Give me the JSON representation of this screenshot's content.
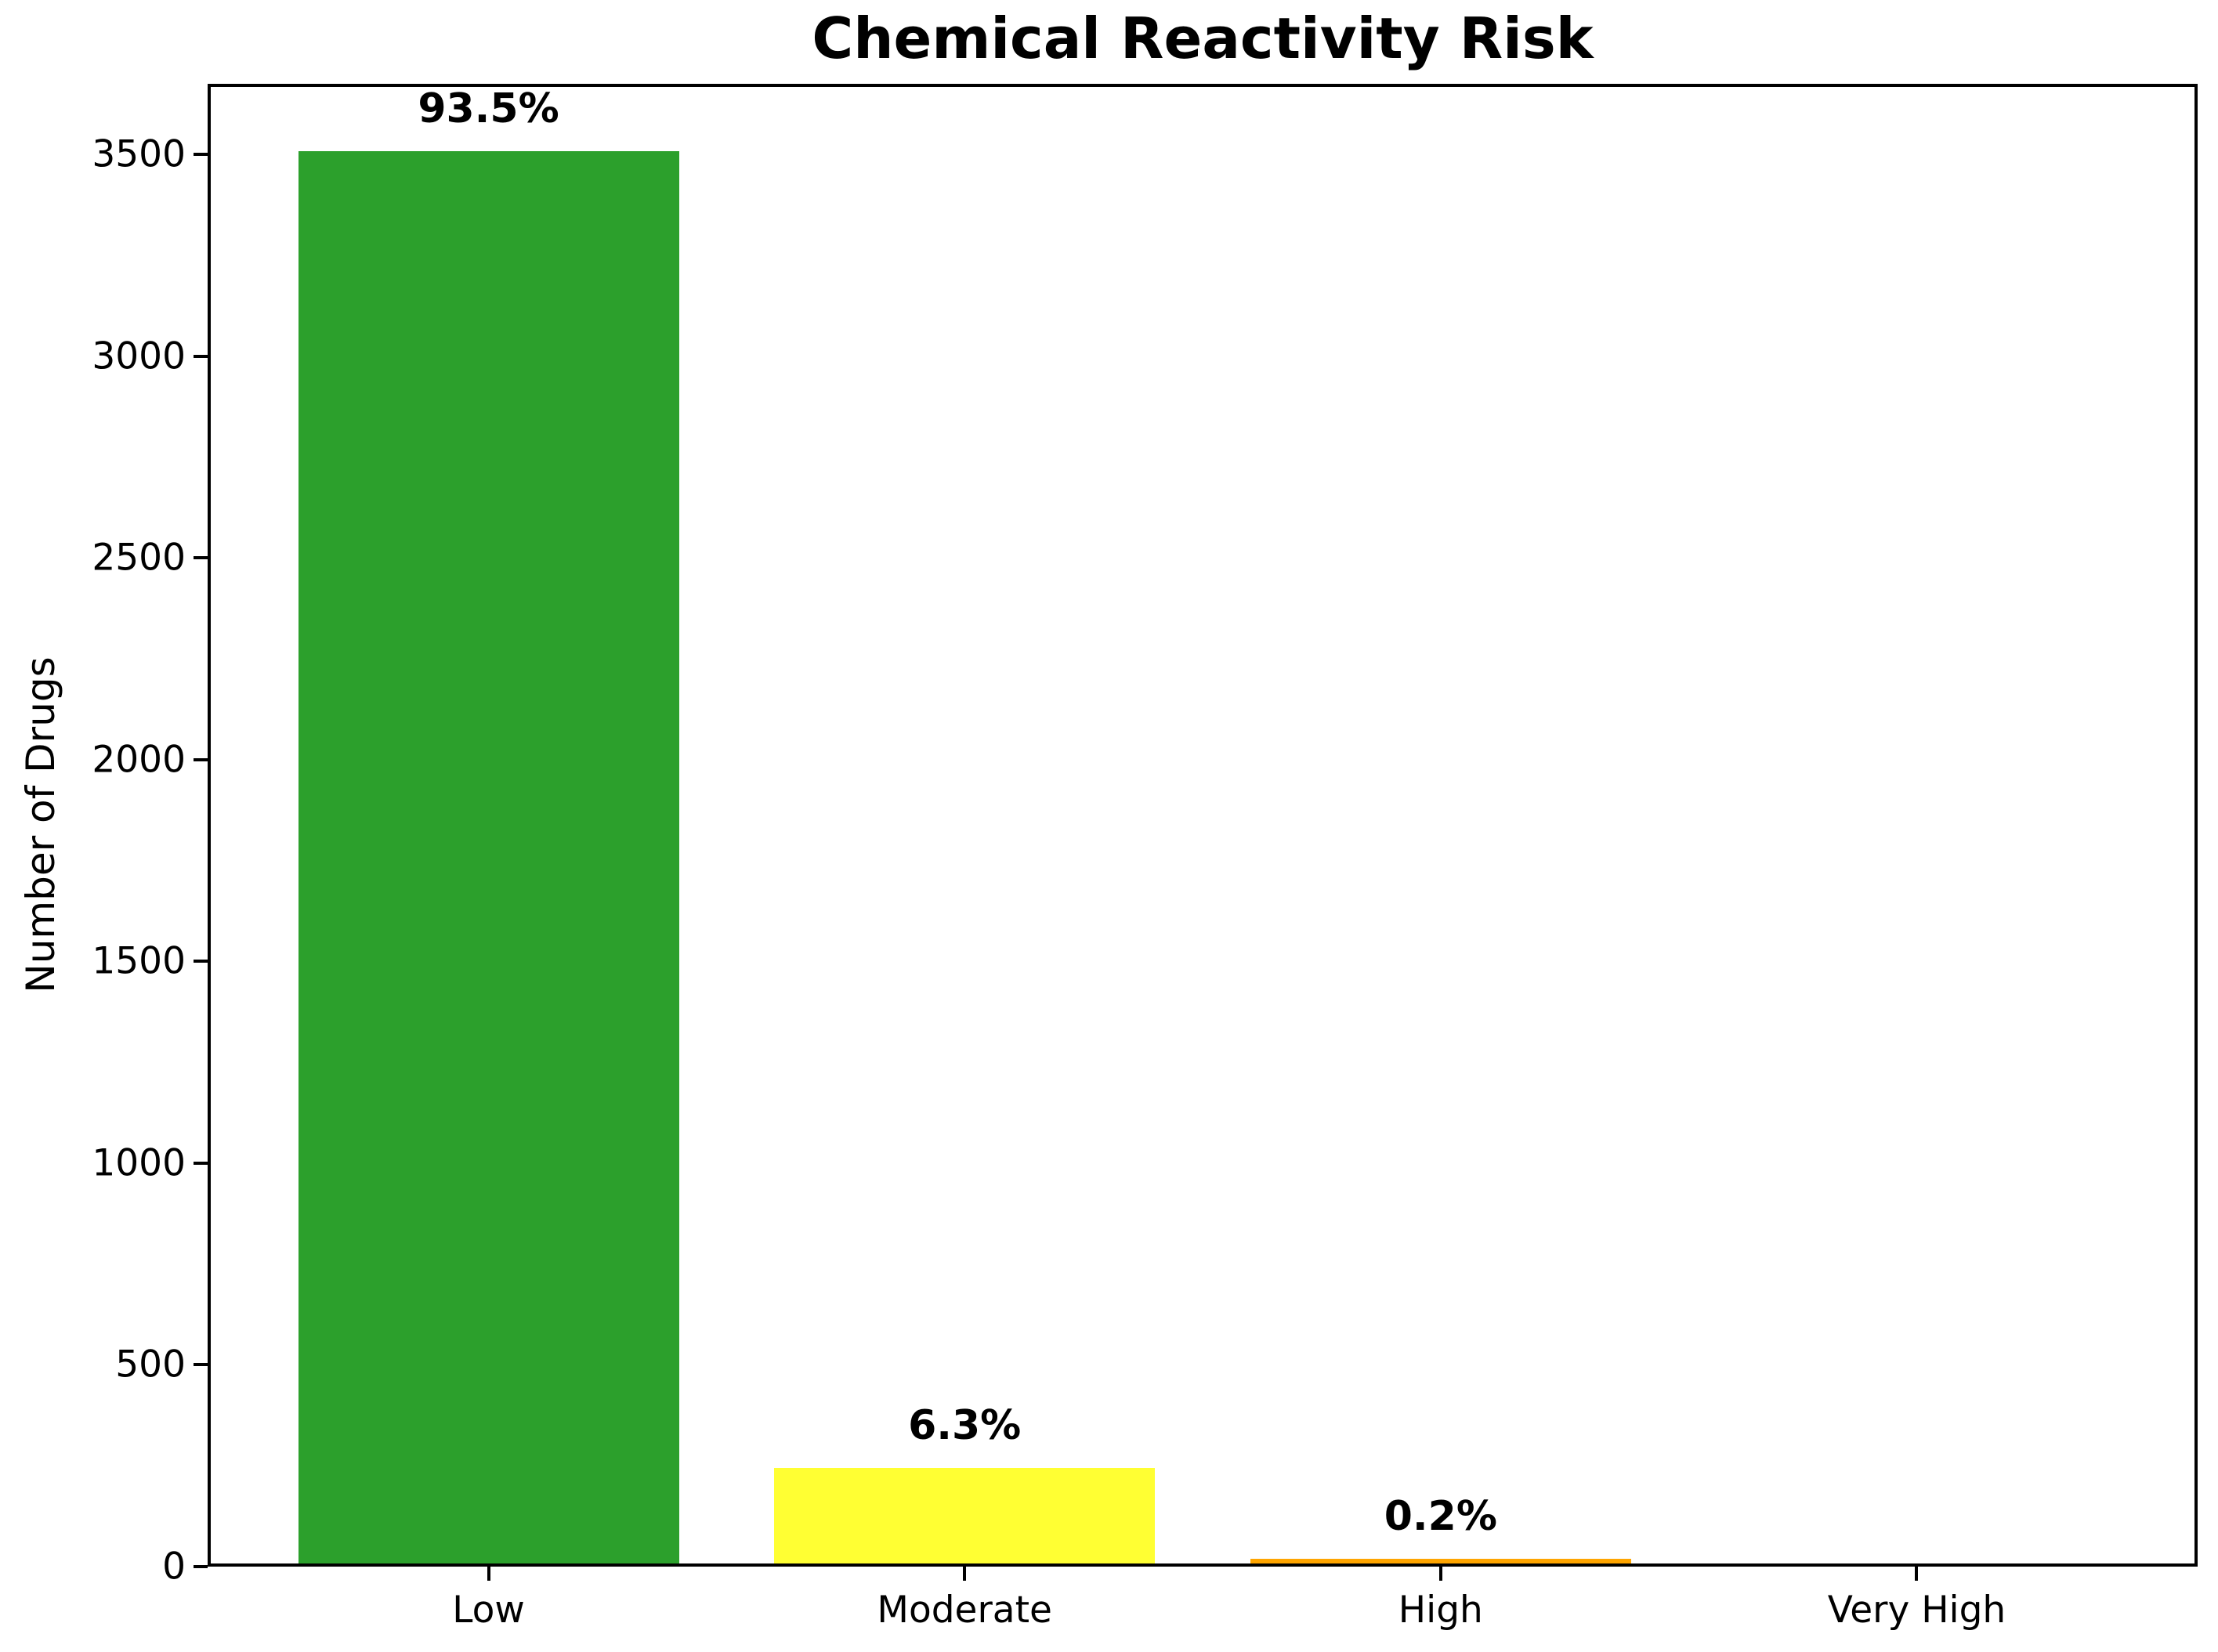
{
  "figure": {
    "background": "#ffffff",
    "text_color": "#000000",
    "axis_color": "#000000"
  },
  "chart_data": {
    "type": "bar",
    "title": "Chemical Reactivity Risk",
    "xlabel": "",
    "ylabel": "Number of Drugs",
    "categories": [
      "Low",
      "Moderate",
      "High",
      "Very High"
    ],
    "values": [
      3500,
      236,
      8,
      0
    ],
    "bar_labels": [
      "93.5%",
      "6.3%",
      "0.2%",
      ""
    ],
    "bar_colors": [
      "#2ca02c",
      "#ffff33",
      "#ffa500",
      null
    ],
    "yticks": [
      0,
      500,
      1000,
      1500,
      2000,
      2500,
      3000,
      3500
    ],
    "ylim": [
      0,
      3675
    ],
    "grid": false,
    "legend_position": "none"
  }
}
